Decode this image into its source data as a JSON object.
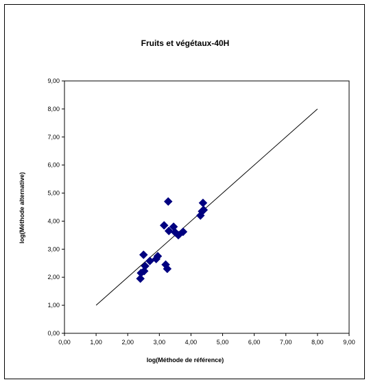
{
  "chart_data": {
    "type": "scatter",
    "title": "Fruits et végétaux-40H",
    "xlabel": "log(Méthode de référence)",
    "ylabel": "log(Méthode alternative)",
    "xlim": [
      0,
      9
    ],
    "ylim": [
      0,
      9
    ],
    "x_ticks": [
      "0,00",
      "1,00",
      "2,00",
      "3,00",
      "4,00",
      "5,00",
      "6,00",
      "7,00",
      "8,00",
      "9,00"
    ],
    "y_ticks": [
      "0,00",
      "1,00",
      "2,00",
      "3,00",
      "4,00",
      "5,00",
      "6,00",
      "7,00",
      "8,00",
      "9,00"
    ],
    "grid": false,
    "legend": false,
    "marker": "diamond",
    "marker_color": "#000080",
    "points": [
      {
        "x": 2.4,
        "y": 1.95
      },
      {
        "x": 2.42,
        "y": 2.15
      },
      {
        "x": 2.52,
        "y": 2.22
      },
      {
        "x": 2.55,
        "y": 2.4
      },
      {
        "x": 2.5,
        "y": 2.8
      },
      {
        "x": 2.7,
        "y": 2.58
      },
      {
        "x": 2.9,
        "y": 2.65
      },
      {
        "x": 2.95,
        "y": 2.75
      },
      {
        "x": 3.2,
        "y": 2.45
      },
      {
        "x": 3.25,
        "y": 2.3
      },
      {
        "x": 3.15,
        "y": 3.85
      },
      {
        "x": 3.3,
        "y": 3.65
      },
      {
        "x": 3.45,
        "y": 3.8
      },
      {
        "x": 3.5,
        "y": 3.6
      },
      {
        "x": 3.6,
        "y": 3.5
      },
      {
        "x": 3.75,
        "y": 3.62
      },
      {
        "x": 3.28,
        "y": 4.7
      },
      {
        "x": 4.3,
        "y": 4.2
      },
      {
        "x": 4.35,
        "y": 4.35
      },
      {
        "x": 4.4,
        "y": 4.4
      },
      {
        "x": 4.38,
        "y": 4.65
      }
    ],
    "reference_line": {
      "x": [
        1,
        8
      ],
      "y": [
        1,
        8
      ]
    }
  }
}
